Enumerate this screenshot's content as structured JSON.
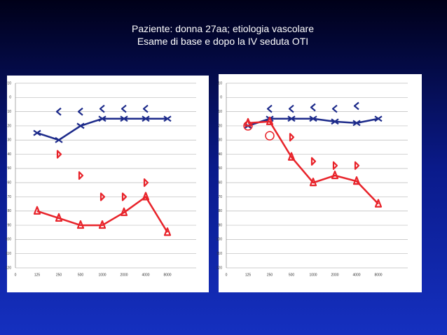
{
  "header": {
    "title": "Paziente: donna 27aa; etiologia vascolare",
    "subtitle": "Esame di base e dopo la IV seduta OTI"
  },
  "chart_data": [
    {
      "type": "line",
      "categories": [
        "0",
        "125",
        "250",
        "500",
        "1000",
        "2000",
        "4000",
        "8000"
      ],
      "ylim": [
        -10,
        120
      ],
      "yticks": [
        -10,
        0,
        10,
        20,
        30,
        40,
        50,
        60,
        70,
        80,
        90,
        100,
        110,
        120
      ],
      "y_inverted": true,
      "grid": true,
      "series": [
        {
          "color": "#1c2a8a",
          "marker": "x",
          "line": true,
          "values": [
            null,
            25,
            30,
            20,
            15,
            15,
            15,
            15
          ]
        },
        {
          "color": "#1c2a8a",
          "marker": "<",
          "line": false,
          "values": [
            null,
            null,
            10,
            10,
            8,
            8,
            8,
            null
          ]
        },
        {
          "color": "#e8232a",
          "marker": "triangle",
          "line": true,
          "values": [
            null,
            80,
            85,
            90,
            90,
            81,
            70,
            95
          ]
        },
        {
          "color": "#e8232a",
          "marker": ">",
          "line": false,
          "values": [
            null,
            null,
            40,
            55,
            70,
            70,
            60,
            null
          ]
        }
      ]
    },
    {
      "type": "line",
      "categories": [
        "0",
        "125",
        "250",
        "500",
        "1000",
        "2000",
        "4000",
        "8000"
      ],
      "ylim": [
        -10,
        120
      ],
      "yticks": [
        -10,
        0,
        10,
        20,
        30,
        40,
        50,
        60,
        70,
        80,
        90,
        100,
        110,
        120
      ],
      "y_inverted": true,
      "grid": true,
      "series": [
        {
          "color": "#1c2a8a",
          "marker": "x",
          "line": true,
          "values": [
            null,
            20,
            15,
            15,
            15,
            17,
            18,
            15
          ]
        },
        {
          "color": "#1c2a8a",
          "marker": "<",
          "line": false,
          "values": [
            null,
            null,
            8,
            8,
            7,
            8,
            6,
            null
          ]
        },
        {
          "color": "#e8232a",
          "marker": "triangle",
          "line": true,
          "values": [
            null,
            18,
            17,
            42,
            60,
            55,
            59,
            75
          ]
        },
        {
          "color": "#e8232a",
          "marker": "circle",
          "line": false,
          "values": [
            null,
            20,
            27,
            null,
            null,
            null,
            null,
            null
          ]
        },
        {
          "color": "#e8232a",
          "marker": ">",
          "line": false,
          "values": [
            null,
            null,
            null,
            28,
            45,
            48,
            48,
            null
          ]
        }
      ]
    }
  ]
}
